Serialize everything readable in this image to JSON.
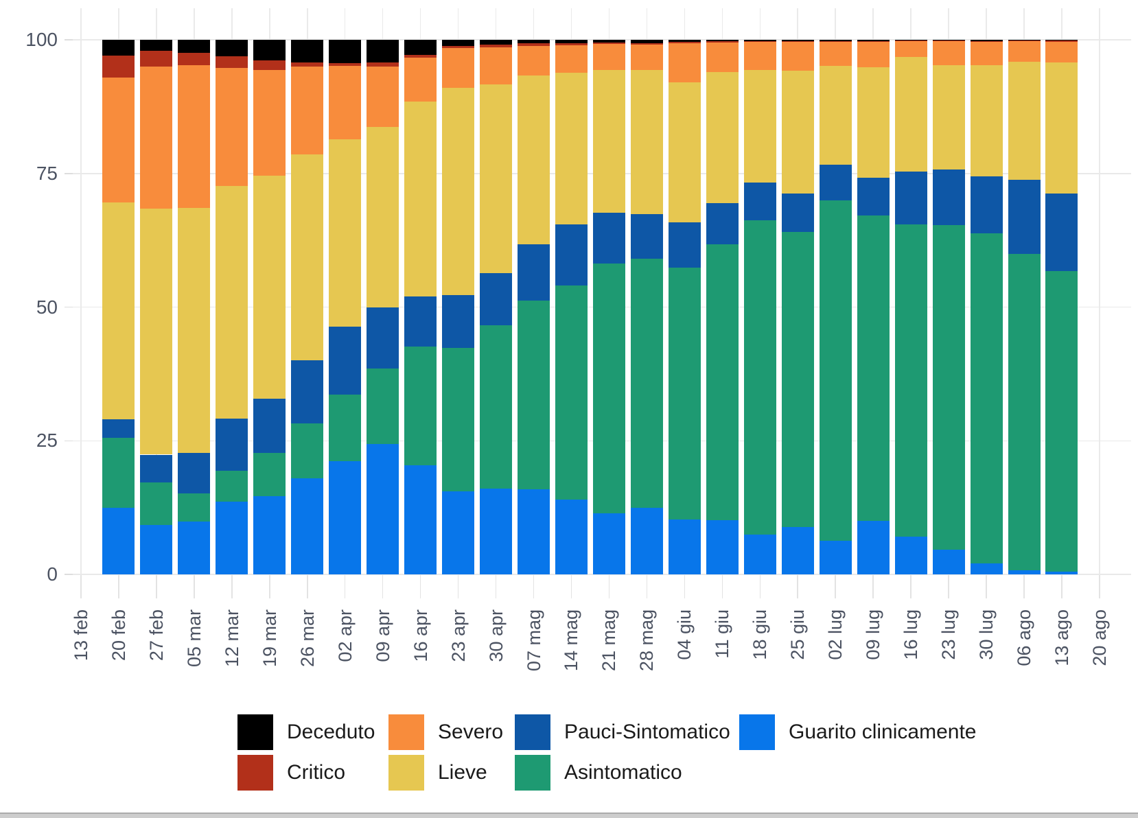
{
  "chart_data": {
    "type": "bar",
    "stacked": true,
    "units": "percent",
    "title": "",
    "xlabel": "",
    "ylabel": "",
    "ylim": [
      0,
      100
    ],
    "y_ticks": [
      0,
      25,
      50,
      75,
      100
    ],
    "grid": true,
    "legend_position": "bottom",
    "x_axis_ticks": [
      "13 feb",
      "20 feb",
      "27 feb",
      "05 mar",
      "12 mar",
      "19 mar",
      "26 mar",
      "02 apr",
      "09 apr",
      "16 apr",
      "23 apr",
      "30 apr",
      "07 mag",
      "14 mag",
      "21 mag",
      "28 mag",
      "04 giu",
      "11 giu",
      "18 giu",
      "25 giu",
      "02 lug",
      "09 lug",
      "16 lug",
      "23 lug",
      "30 lug",
      "06 ago",
      "13 ago",
      "20 ago"
    ],
    "categories": [
      "20 feb",
      "27 feb",
      "05 mar",
      "12 mar",
      "19 mar",
      "26 mar",
      "02 apr",
      "09 apr",
      "16 apr",
      "23 apr",
      "30 apr",
      "07 mag",
      "14 mag",
      "21 mag",
      "28 mag",
      "04 giu",
      "11 giu",
      "18 giu",
      "25 giu",
      "02 lug",
      "09 lug",
      "16 lug",
      "23 lug",
      "30 lug",
      "06 ago",
      "13 ago"
    ],
    "series": [
      {
        "name": "Guarito clinicamente",
        "color": "#0876EA",
        "values": [
          12.4,
          9.2,
          9.9,
          13.6,
          14.6,
          18.0,
          21.2,
          24.4,
          20.4,
          15.5,
          16.0,
          15.9,
          14.0,
          11.4,
          12.4,
          10.3,
          10.1,
          7.4,
          8.9,
          6.3,
          10.0,
          7.1,
          4.6,
          2.1,
          0.8,
          0.5
        ]
      },
      {
        "name": "Asintomatico",
        "color": "#1E9A72",
        "values": [
          13.1,
          8.0,
          5.3,
          5.8,
          8.1,
          10.2,
          12.4,
          14.1,
          22.2,
          26.9,
          30.6,
          35.3,
          40.1,
          46.8,
          46.6,
          47.1,
          51.7,
          58.9,
          55.1,
          63.7,
          57.1,
          58.4,
          60.7,
          61.7,
          59.2,
          56.2
        ]
      },
      {
        "name": "Pauci-Sintomatico",
        "color": "#0E57A6",
        "values": [
          3.5,
          5.2,
          7.5,
          9.7,
          10.1,
          11.8,
          12.7,
          11.4,
          9.4,
          9.8,
          9.8,
          10.6,
          11.4,
          9.4,
          8.4,
          8.5,
          7.6,
          7.0,
          7.3,
          6.6,
          7.1,
          9.9,
          10.4,
          10.6,
          13.8,
          14.6
        ]
      },
      {
        "name": "Lieve",
        "color": "#E6C751",
        "values": [
          40.6,
          46.0,
          45.9,
          43.5,
          41.8,
          38.6,
          35.1,
          33.8,
          36.4,
          38.8,
          35.3,
          31.5,
          28.3,
          26.8,
          26.9,
          26.2,
          24.6,
          21.1,
          22.9,
          18.5,
          20.7,
          21.4,
          19.5,
          20.8,
          22.1,
          24.5
        ]
      },
      {
        "name": "Severo",
        "color": "#F88C3C",
        "values": [
          23.3,
          26.6,
          26.6,
          22.1,
          19.8,
          16.4,
          13.7,
          11.3,
          8.3,
          7.4,
          6.9,
          5.6,
          5.2,
          4.8,
          4.8,
          7.2,
          5.5,
          5.2,
          5.4,
          4.6,
          4.8,
          3.0,
          4.6,
          4.4,
          3.9,
          3.8
        ]
      },
      {
        "name": "Critico",
        "color": "#B2301A",
        "values": [
          4.2,
          2.9,
          2.4,
          2.2,
          1.7,
          0.8,
          0.5,
          0.7,
          0.5,
          0.4,
          0.5,
          0.4,
          0.3,
          0.3,
          0.3,
          0.3,
          0.2,
          0.1,
          0.1,
          0.1,
          0.1,
          0.1,
          0.1,
          0.2,
          0.1,
          0.3
        ]
      },
      {
        "name": "Deceduto",
        "color": "#000000",
        "values": [
          2.9,
          2.1,
          2.4,
          3.1,
          3.9,
          4.2,
          4.4,
          4.3,
          2.8,
          1.2,
          0.9,
          0.7,
          0.7,
          0.5,
          0.6,
          0.4,
          0.3,
          0.3,
          0.3,
          0.2,
          0.2,
          0.1,
          0.1,
          0.2,
          0.1,
          0.1
        ]
      }
    ],
    "legend": [
      {
        "label": "Deceduto",
        "color": "#000000",
        "row": 0,
        "col": 0
      },
      {
        "label": "Severo",
        "color": "#F88C3C",
        "row": 0,
        "col": 1
      },
      {
        "label": "Pauci-Sintomatico",
        "color": "#0E57A6",
        "row": 0,
        "col": 2
      },
      {
        "label": "Guarito clinicamente",
        "color": "#0876EA",
        "row": 0,
        "col": 3
      },
      {
        "label": "Critico",
        "color": "#B2301A",
        "row": 1,
        "col": 0
      },
      {
        "label": "Lieve",
        "color": "#E6C751",
        "row": 1,
        "col": 1
      },
      {
        "label": "Asintomatico",
        "color": "#1E9A72",
        "row": 1,
        "col": 2
      }
    ]
  },
  "axis_text_color": "#4c5362",
  "legend_text_color": "#1a1a1a"
}
